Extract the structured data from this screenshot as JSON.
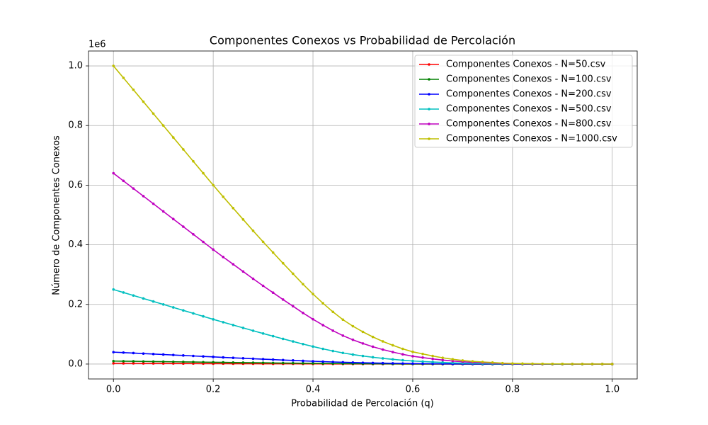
{
  "chart_data": {
    "type": "line",
    "title": "Componentes Conexos vs Probabilidad de Percolación",
    "x_label": "Probabilidad de Percolación (q)",
    "y_label": "Número de Componentes Conexos",
    "y_offset_label": "1e6",
    "xlim": [
      -0.05,
      1.05
    ],
    "ylim": [
      -0.05,
      1.05
    ],
    "xticks": [
      {
        "value": 0,
        "label": "0.0"
      },
      0.2,
      0.4,
      0.6,
      0.8,
      {
        "value": 1,
        "label": "1.0"
      }
    ],
    "yticks": [
      {
        "value": 0,
        "label": "0.0"
      },
      0.2,
      0.4,
      0.6,
      0.8,
      {
        "value": 1,
        "label": "1.0"
      }
    ],
    "grid": true,
    "legend": "upper right",
    "x": [
      0,
      0.02,
      0.04,
      0.06,
      0.08,
      0.1,
      0.12,
      0.14,
      0.16,
      0.18,
      0.2,
      0.22,
      0.24,
      0.26,
      0.28,
      0.3,
      0.32,
      0.34,
      0.36,
      0.38,
      0.4,
      0.42,
      0.44,
      0.46,
      0.48,
      0.5,
      0.52,
      0.54,
      0.56,
      0.58,
      0.6,
      0.62,
      0.64,
      0.66,
      0.68,
      0.7,
      0.72,
      0.74,
      0.76,
      0.78,
      0.8,
      0.82,
      0.84,
      0.86,
      0.88,
      0.9,
      0.92,
      0.94,
      0.96,
      0.98,
      1
    ],
    "series": [
      {
        "name": "Componentes Conexos - N=50.csv",
        "color": "#ff0000",
        "values": [
          0.0025,
          0.0024,
          0.0023,
          0.0022,
          0.0021,
          0.002,
          0.0019,
          0.0018,
          0.0017,
          0.0016,
          0.0015,
          0.0014,
          0.0013,
          0.0012,
          0.0011,
          0.001,
          0.0009,
          0.0008,
          0.0008,
          0.0007,
          0.0006,
          0.0005,
          0.0004,
          0.0004,
          0.0003,
          0.0003,
          0.0002,
          0.0002,
          0.0002,
          0.0001,
          0.0001,
          0,
          0,
          0,
          0,
          0,
          0,
          0,
          0,
          0,
          0,
          0,
          0,
          0,
          0,
          0,
          0,
          0,
          0,
          0,
          0
        ]
      },
      {
        "name": "Componentes Conexos - N=100.csv",
        "color": "#008000",
        "values": [
          0.01,
          0.0096,
          0.0092,
          0.0088,
          0.0084,
          0.008,
          0.0076,
          0.0072,
          0.0068,
          0.0064,
          0.006,
          0.0056,
          0.0052,
          0.0049,
          0.0045,
          0.0041,
          0.0037,
          0.0034,
          0.003,
          0.0027,
          0.0024,
          0.002,
          0.0018,
          0.0015,
          0.0013,
          0.0011,
          0.0009,
          0.0008,
          0.0006,
          0.0005,
          0.0004,
          0.0003,
          0.0003,
          0.0002,
          0.0002,
          0.0001,
          0.0001,
          0,
          0,
          0,
          0,
          0,
          0,
          0,
          0,
          0,
          0,
          0,
          0,
          0,
          0
        ]
      },
      {
        "name": "Componentes Conexos - N=200.csv",
        "color": "#0000ff",
        "values": [
          0.04,
          0.0384,
          0.0368,
          0.0352,
          0.0336,
          0.032,
          0.0304,
          0.0288,
          0.0272,
          0.0256,
          0.024,
          0.0224,
          0.0209,
          0.0194,
          0.0179,
          0.0164,
          0.015,
          0.0135,
          0.0121,
          0.0107,
          0.0094,
          0.0082,
          0.007,
          0.006,
          0.0051,
          0.0043,
          0.0036,
          0.003,
          0.0025,
          0.002,
          0.0016,
          0.0014,
          0.0011,
          0.0008,
          0.0006,
          0.0005,
          0.0004,
          0.0003,
          0.0002,
          0.0001,
          0.0001,
          0,
          0,
          0,
          0,
          0,
          0,
          0,
          0,
          0,
          0
        ]
      },
      {
        "name": "Componentes Conexos - N=500.csv",
        "color": "#00bfbf",
        "values": [
          0.25,
          0.24,
          0.23,
          0.22,
          0.21,
          0.2,
          0.19,
          0.18,
          0.17,
          0.16,
          0.15,
          0.1403,
          0.1308,
          0.1213,
          0.1118,
          0.1025,
          0.0935,
          0.0845,
          0.0758,
          0.067,
          0.0588,
          0.051,
          0.0438,
          0.0373,
          0.0318,
          0.027,
          0.0228,
          0.019,
          0.0158,
          0.0128,
          0.0103,
          0.0085,
          0.0068,
          0.0053,
          0.004,
          0.003,
          0.0023,
          0.0018,
          0.0013,
          0.0008,
          0.0005,
          0.0004,
          0.0003,
          0.0002,
          0.0001,
          0.0001,
          0,
          0,
          0,
          0,
          0
        ]
      },
      {
        "name": "Componentes Conexos - N=800.csv",
        "color": "#bf00bf",
        "values": [
          0.64,
          0.6144,
          0.5888,
          0.5632,
          0.5376,
          0.512,
          0.4864,
          0.4608,
          0.4352,
          0.4096,
          0.384,
          0.359,
          0.3347,
          0.3104,
          0.2861,
          0.2624,
          0.2394,
          0.2163,
          0.1939,
          0.1715,
          0.1504,
          0.1306,
          0.112,
          0.0954,
          0.0813,
          0.0691,
          0.0582,
          0.0486,
          0.0403,
          0.0326,
          0.0262,
          0.0218,
          0.0173,
          0.0134,
          0.0102,
          0.0077,
          0.0058,
          0.0045,
          0.0032,
          0.0019,
          0.0013,
          0.001,
          0.0006,
          0.0004,
          0.0003,
          0.0002,
          0.0001,
          0.0001,
          0,
          0,
          0
        ]
      },
      {
        "name": "Componentes Conexos - N=1000.csv",
        "color": "#bfbf00",
        "values": [
          1.0,
          0.96,
          0.92,
          0.88,
          0.84,
          0.8,
          0.76,
          0.72,
          0.68,
          0.64,
          0.6,
          0.561,
          0.523,
          0.485,
          0.447,
          0.41,
          0.374,
          0.338,
          0.303,
          0.268,
          0.235,
          0.204,
          0.175,
          0.149,
          0.127,
          0.108,
          0.091,
          0.076,
          0.063,
          0.051,
          0.041,
          0.034,
          0.027,
          0.021,
          0.016,
          0.012,
          0.009,
          0.007,
          0.005,
          0.003,
          0.002,
          0.0015,
          0.001,
          0.0007,
          0.0005,
          0.0003,
          0.0002,
          0.0001,
          5e-05,
          2e-05,
          0
        ]
      }
    ]
  }
}
